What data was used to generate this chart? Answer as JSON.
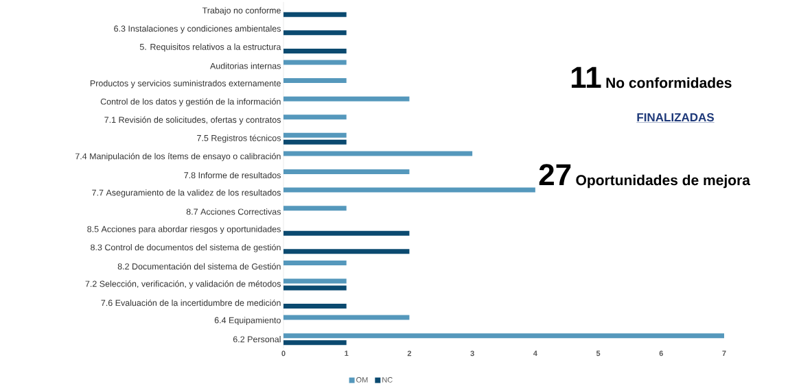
{
  "chart_data": {
    "type": "bar",
    "orientation": "horizontal",
    "categories": [
      "Trabajo no conforme",
      "6.3 Instalaciones y condiciones ambientales",
      "5. Requisitos relativos a la estructura",
      "Auditorias internas",
      "Productos y servicios suministrados externamente",
      "Control de los datos y gestión de la información",
      "7.1 Revisión de solicitudes, ofertas y contratos",
      "7.5 Registros técnicos",
      "7.4 Manipulación de los ítems de ensayo o calibración",
      "7.8 Informe de resultados",
      "7.7 Aseguramiento de la validez de los resultados",
      "8.7 Acciones Correctivas",
      "8.5 Acciones para abordar riesgos y oportunidades",
      "8.3 Control de documentos del sistema de gestión",
      "8.2 Documentación del sistema de Gestión",
      "7.2 Selección, verificación, y validación de métodos",
      "7.6 Evaluación de la incertidumbre de medición",
      "6.4 Equipamiento",
      "6.2 Personal"
    ],
    "series": [
      {
        "name": "OM",
        "color": "#5598bc",
        "values": [
          null,
          null,
          null,
          1,
          1,
          2,
          1,
          1,
          3,
          2,
          4,
          1,
          null,
          null,
          1,
          1,
          null,
          2,
          7
        ]
      },
      {
        "name": "NC",
        "color": "#0b4a70",
        "values": [
          1,
          1,
          1,
          null,
          null,
          null,
          null,
          1,
          null,
          null,
          null,
          null,
          2,
          2,
          null,
          1,
          1,
          null,
          1
        ]
      }
    ],
    "xlim": [
      0,
      7
    ],
    "xticks": [
      0,
      1,
      2,
      3,
      4,
      5,
      6,
      7
    ],
    "grid": false,
    "legend": "bottom",
    "annotations": [
      "11",
      "No conformidades",
      "FINALIZADAS",
      "27",
      "Oportunidades de mejora"
    ]
  }
}
